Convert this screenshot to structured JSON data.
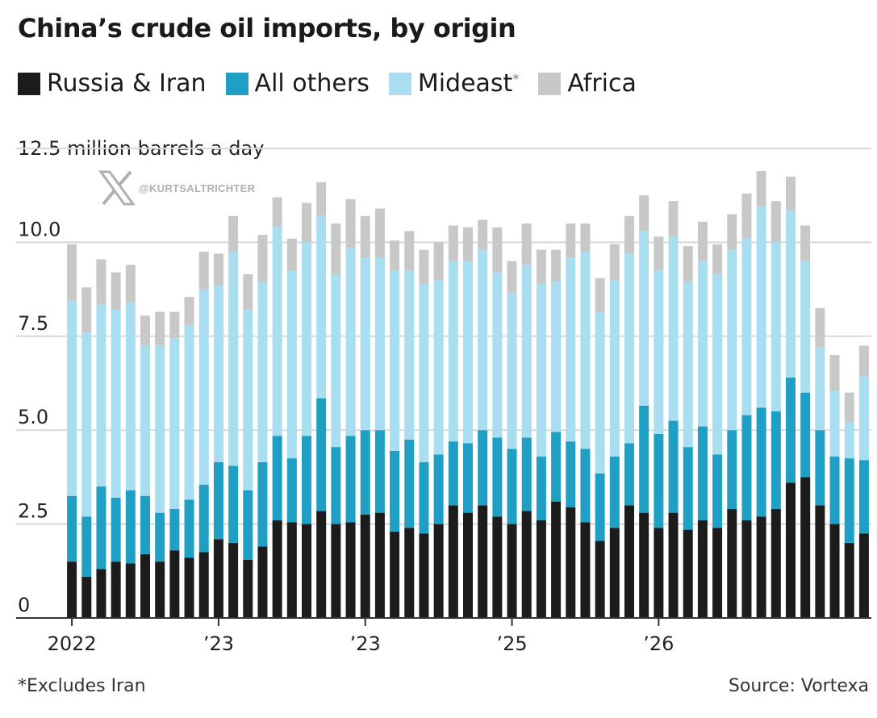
{
  "colors": {
    "russia_iran": "#1c1c1c",
    "all_others": "#1e9fc3",
    "mideast": "#a9ddf0",
    "africa": "#c8c8c8",
    "grid": "#d8d8d8",
    "watermark": "#b0b0b0"
  },
  "watermark": {
    "icon": "x-logo-icon",
    "handle": "@KURTSALTRICHTER"
  },
  "footnote": "*Excludes Iran",
  "source": "Source: Vortexa",
  "chart_data": {
    "type": "bar",
    "stacked": true,
    "title": "China’s crude oil imports, by origin",
    "ylabel": "12.5 million barrels a day",
    "ylim": [
      0,
      12.5
    ],
    "yticks": [
      {
        "value": 0,
        "label": "0"
      },
      {
        "value": 2.5,
        "label": "2.5"
      },
      {
        "value": 5,
        "label": "5.0"
      },
      {
        "value": 7.5,
        "label": "7.5"
      },
      {
        "value": 10,
        "label": "10.0"
      }
    ],
    "grid": true,
    "legend_position": "top-left",
    "xtick_labels": [
      {
        "index": 0,
        "label": "2022"
      },
      {
        "index": 10,
        "label": "’23"
      },
      {
        "index": 20,
        "label": "’23"
      },
      {
        "index": 30,
        "label": "’25"
      },
      {
        "index": 40,
        "label": "’26"
      }
    ],
    "series": [
      {
        "name": "Russia & Iran",
        "color_key": "russia_iran",
        "values": [
          1.5,
          1.1,
          1.3,
          1.5,
          1.45,
          1.7,
          1.5,
          1.8,
          1.6,
          1.75,
          2.1,
          2.0,
          1.55,
          1.9,
          2.6,
          2.55,
          2.5,
          2.85,
          2.5,
          2.55,
          2.75,
          2.8,
          2.3,
          2.4,
          2.25,
          2.5,
          3.0,
          2.8,
          3.0,
          2.7,
          2.5,
          2.85,
          2.6,
          3.1,
          2.95,
          2.55,
          2.05,
          2.4,
          3.0,
          2.8,
          2.4,
          2.8,
          2.35,
          2.6,
          2.4,
          2.9,
          2.6,
          2.7,
          2.9,
          3.6,
          3.75,
          3.0,
          2.5,
          2.0,
          2.25
        ]
      },
      {
        "name": "All others",
        "sup": "",
        "color_key": "all_others",
        "values": [
          1.75,
          1.6,
          2.2,
          1.7,
          1.95,
          1.55,
          1.3,
          1.1,
          1.55,
          1.8,
          2.05,
          2.05,
          1.85,
          2.25,
          2.25,
          1.7,
          2.35,
          3.0,
          2.05,
          2.3,
          2.25,
          2.2,
          2.15,
          2.35,
          1.9,
          1.85,
          1.7,
          1.85,
          2.0,
          2.1,
          2.0,
          1.95,
          1.7,
          1.85,
          1.75,
          1.95,
          1.8,
          1.9,
          1.65,
          2.85,
          2.5,
          2.45,
          2.2,
          2.5,
          1.95,
          2.1,
          2.8,
          2.9,
          2.6,
          2.8,
          2.25,
          2.0,
          1.8,
          2.25,
          1.95
        ]
      },
      {
        "name": "Mideast",
        "sup": "*",
        "color_key": "mideast",
        "values": [
          5.2,
          4.9,
          4.85,
          5.0,
          5.0,
          4.0,
          4.45,
          4.55,
          4.65,
          5.2,
          4.7,
          5.7,
          4.8,
          4.8,
          5.55,
          5.0,
          5.15,
          4.85,
          4.6,
          5.0,
          4.6,
          4.6,
          4.8,
          4.5,
          4.75,
          4.65,
          4.8,
          4.85,
          4.8,
          4.4,
          4.15,
          4.6,
          4.6,
          4.0,
          4.9,
          5.25,
          4.3,
          4.7,
          5.05,
          4.65,
          4.35,
          4.9,
          4.4,
          4.4,
          4.8,
          4.8,
          4.7,
          5.35,
          4.5,
          4.45,
          3.5,
          2.2,
          1.75,
          0.95,
          2.25
        ]
      },
      {
        "name": "Africa",
        "sup": "",
        "color_key": "africa",
        "values": [
          1.5,
          1.2,
          1.2,
          1.0,
          1.0,
          0.8,
          0.9,
          0.7,
          0.75,
          1.0,
          0.85,
          0.95,
          0.95,
          1.25,
          0.8,
          0.85,
          1.05,
          0.9,
          1.35,
          1.3,
          1.1,
          1.3,
          0.8,
          1.05,
          0.9,
          1.0,
          0.95,
          0.9,
          0.8,
          1.2,
          0.85,
          1.1,
          0.9,
          0.85,
          0.9,
          0.75,
          0.9,
          0.95,
          1.0,
          0.95,
          0.9,
          0.95,
          0.95,
          1.05,
          0.8,
          0.95,
          1.2,
          0.95,
          1.1,
          0.9,
          0.95,
          1.05,
          0.95,
          0.8,
          0.8
        ]
      }
    ]
  }
}
